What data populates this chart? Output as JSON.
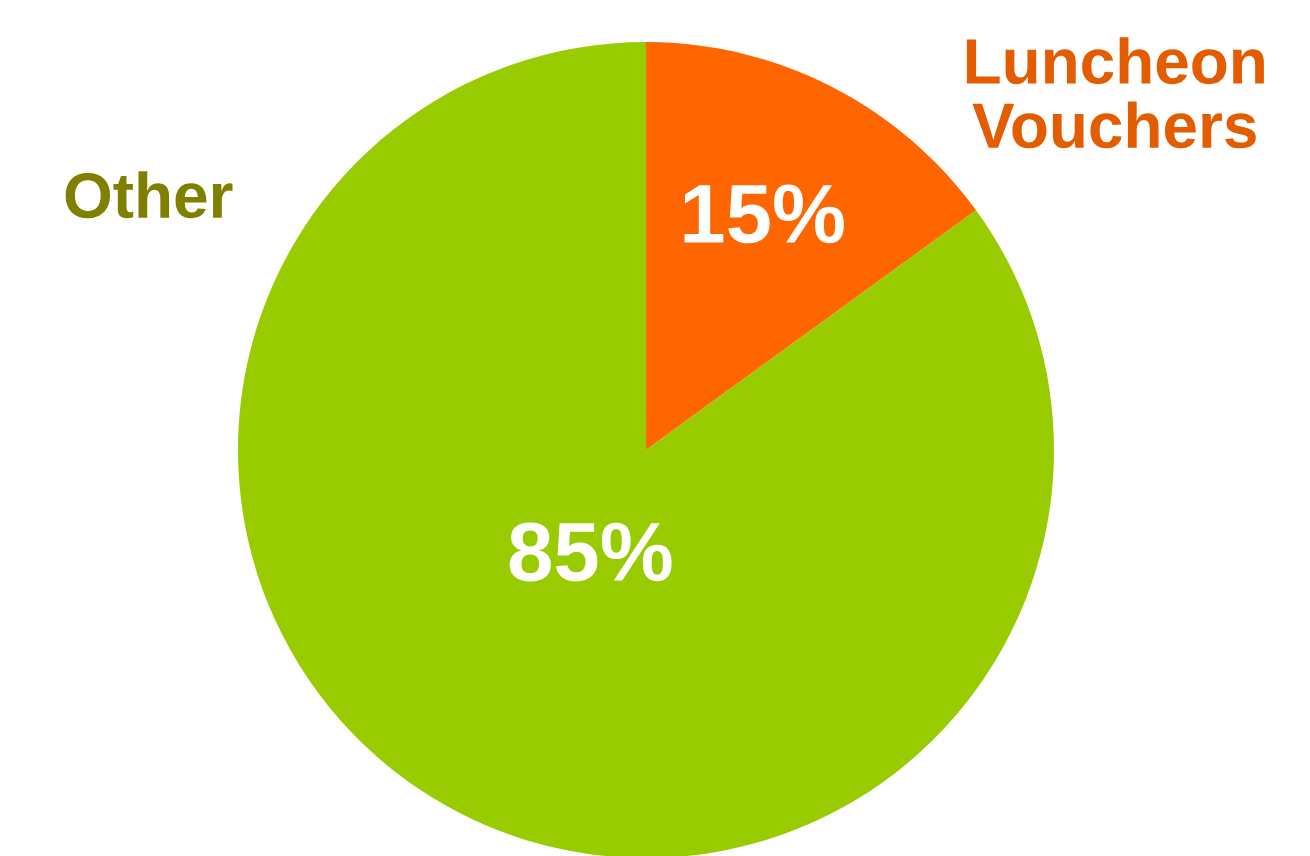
{
  "chart_data": {
    "type": "pie",
    "categories": [
      "Luncheon Vouchers",
      "Other"
    ],
    "values": [
      15,
      85
    ],
    "colors": [
      "#ff6600",
      "#99cc00"
    ],
    "value_labels": [
      "15%",
      "85%"
    ]
  }
}
